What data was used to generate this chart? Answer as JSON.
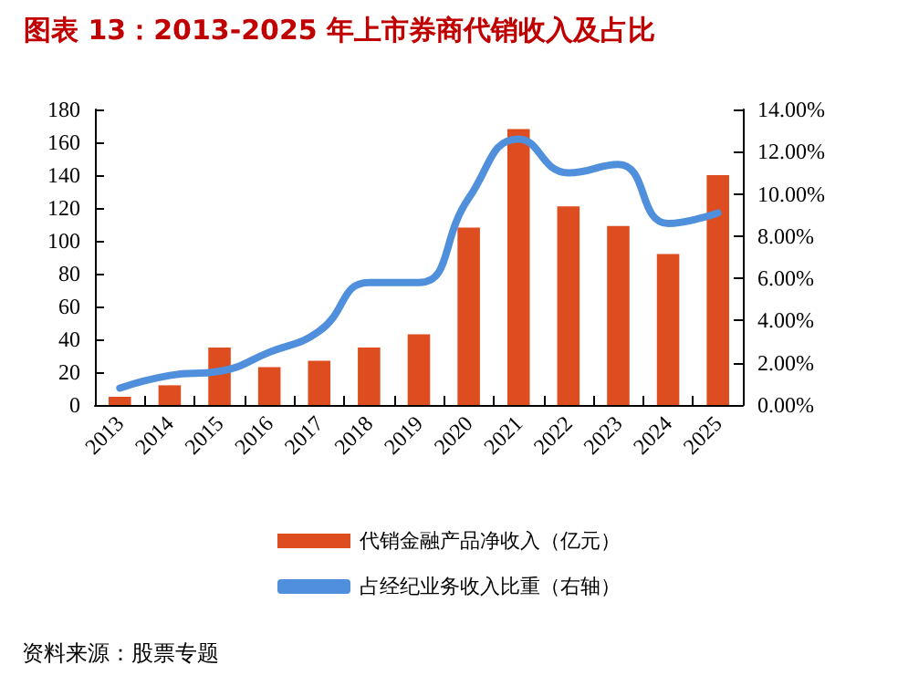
{
  "chart_data": {
    "type": "bar",
    "title": "图表 13：2013-2025 年上市券商代销收入及占比",
    "categories": [
      "2013",
      "2014",
      "2015",
      "2016",
      "2017",
      "2018",
      "2019",
      "2020",
      "2021",
      "2022",
      "2023",
      "2024",
      "2025"
    ],
    "series": [
      {
        "name": "代销金融产品净收入（亿元）",
        "color": "#dd4d1f",
        "values": [
          5,
          12,
          35,
          23,
          27,
          35,
          43,
          108,
          168,
          121,
          109,
          92,
          140
        ]
      },
      {
        "name": "占经纪业务收入比重（右轴）",
        "type": "line",
        "axis": "y2",
        "color": "#4f8fdc",
        "values": [
          0.8,
          1.4,
          1.6,
          2.5,
          3.5,
          5.8,
          5.8,
          9.8,
          12.6,
          11.0,
          11.4,
          8.6,
          9.1
        ]
      }
    ],
    "ylim": [
      0,
      180
    ],
    "yticks": [
      0,
      20,
      40,
      60,
      80,
      100,
      120,
      140,
      160,
      180
    ],
    "y2lim": [
      0,
      14
    ],
    "y2ticks": [
      {
        "value": 0,
        "label": "0.00%"
      },
      {
        "value": 2,
        "label": "2.00%"
      },
      {
        "value": 4,
        "label": "4.00%"
      },
      {
        "value": 6,
        "label": "6.00%"
      },
      {
        "value": 8,
        "label": "8.00%"
      },
      {
        "value": 10,
        "label": "10.00%"
      },
      {
        "value": 12,
        "label": "12.00%"
      },
      {
        "value": 14,
        "label": "14.00%"
      }
    ],
    "legend": "bottom",
    "grid": false,
    "marker": "none",
    "annotations": [
      "资料来源：股票专题"
    ]
  }
}
